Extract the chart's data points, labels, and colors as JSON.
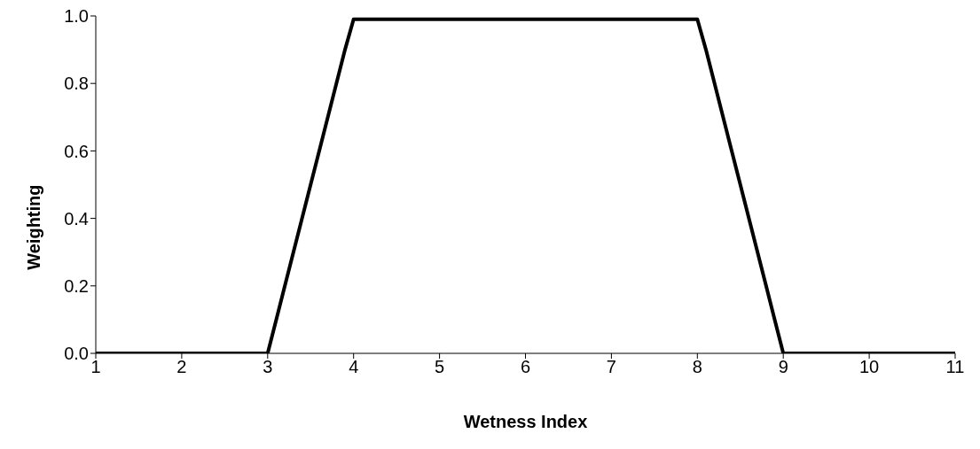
{
  "chart_data": {
    "type": "line",
    "xlabel": "Wetness Index",
    "ylabel": "Weighting",
    "x": [
      1,
      3,
      3.1,
      3.2,
      3.5,
      3.6,
      3.9,
      4,
      8,
      8.1,
      8.4,
      8.5,
      8.8,
      8.9,
      9,
      11
    ],
    "series": [
      {
        "color": "#000000",
        "values": [
          0,
          0,
          0.1,
          0.2,
          0.5,
          0.6,
          0.9,
          0.99,
          0.99,
          0.9,
          0.6,
          0.5,
          0.2,
          0.1,
          0,
          0
        ]
      }
    ],
    "xlim": [
      1,
      11
    ],
    "xticks": [
      1,
      2,
      3,
      4,
      5,
      6,
      7,
      8,
      9,
      10,
      11
    ],
    "ylim": [
      0,
      1
    ],
    "yticks": [
      {
        "value": 0,
        "label": "0.0"
      },
      {
        "value": 0.2,
        "label": "0.2"
      },
      {
        "value": 0.4,
        "label": "0.4"
      },
      {
        "value": 0.6,
        "label": "0.6"
      },
      {
        "value": 0.8,
        "label": "0.8"
      },
      {
        "value": 1,
        "label": "1.0"
      }
    ],
    "grid": false,
    "legend": false,
    "marker": "none",
    "line_style": "solid"
  }
}
